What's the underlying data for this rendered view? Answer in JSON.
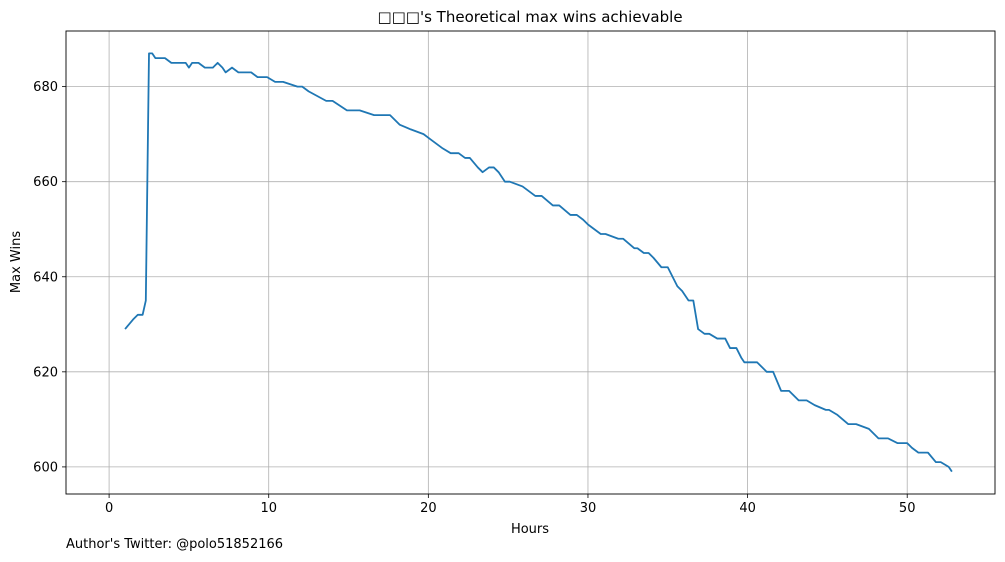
{
  "chart_data": {
    "type": "line",
    "title": "□□□'s Theoretical max wins achievable",
    "xlabel": "Hours",
    "ylabel": "Max Wins",
    "xlim": [
      -2.7,
      55.5
    ],
    "ylim": [
      594.3,
      691.7
    ],
    "xticks": [
      0,
      10,
      20,
      30,
      40,
      50
    ],
    "yticks": [
      600,
      620,
      640,
      660,
      680
    ],
    "grid": true,
    "series_color": "#1f77b4",
    "series": [
      {
        "x": [
          1.0,
          1.5,
          1.8,
          2.1,
          2.3,
          2.5,
          2.7,
          2.9,
          3.5,
          3.9,
          4.8,
          5.0,
          5.2,
          5.6,
          6.0,
          6.5,
          6.8,
          7.1,
          7.3,
          7.7,
          8.1,
          8.9,
          9.3,
          9.9,
          10.4,
          10.9,
          11.8,
          12.1,
          12.5,
          13.6,
          14.0,
          14.9,
          15.7,
          16.6,
          17.6,
          18.2,
          18.9,
          19.7,
          20.1,
          20.5,
          20.9,
          21.4,
          21.9,
          22.3,
          22.6,
          23.1,
          23.4,
          23.8,
          24.1,
          24.4,
          24.8,
          25.1,
          25.9,
          26.7,
          27.1,
          27.8,
          28.2,
          28.9,
          29.3,
          29.7,
          30.0,
          30.8,
          31.1,
          31.9,
          32.2,
          32.9,
          33.1,
          33.5,
          33.8,
          34.1,
          34.6,
          35.0,
          35.3,
          35.6,
          35.9,
          36.3,
          36.6,
          36.9,
          37.3,
          37.6,
          38.1,
          38.6,
          38.9,
          39.3,
          39.6,
          39.8,
          40.6,
          41.2,
          41.6,
          42.1,
          42.6,
          43.2,
          43.7,
          44.2,
          44.9,
          45.1,
          45.6,
          46.3,
          46.8,
          47.6,
          48.2,
          48.8,
          49.4,
          50.0,
          50.3,
          50.7,
          51.3,
          51.8,
          52.1,
          52.6,
          52.8
        ],
        "y": [
          629,
          631,
          632,
          632,
          635,
          687,
          687,
          686,
          686,
          685,
          685,
          684,
          685,
          685,
          684,
          684,
          685,
          684,
          683,
          684,
          683,
          683,
          682,
          682,
          681,
          681,
          680,
          680,
          679,
          677,
          677,
          675,
          675,
          674,
          674,
          672,
          671,
          670,
          669,
          668,
          667,
          666,
          666,
          665,
          665,
          663,
          662,
          663,
          663,
          662,
          660,
          660,
          659,
          657,
          657,
          655,
          655,
          653,
          653,
          652,
          651,
          649,
          649,
          648,
          648,
          646,
          646,
          645,
          645,
          644,
          642,
          642,
          640,
          638,
          637,
          635,
          635,
          629,
          628,
          628,
          627,
          627,
          625,
          625,
          623,
          622,
          622,
          620,
          620,
          616,
          616,
          614,
          614,
          613,
          612,
          612,
          611,
          609,
          609,
          608,
          606,
          606,
          605,
          605,
          604,
          603,
          603,
          601,
          601,
          600,
          599
        ]
      }
    ]
  },
  "footer": {
    "note": "Author's Twitter: @polo51852166"
  }
}
